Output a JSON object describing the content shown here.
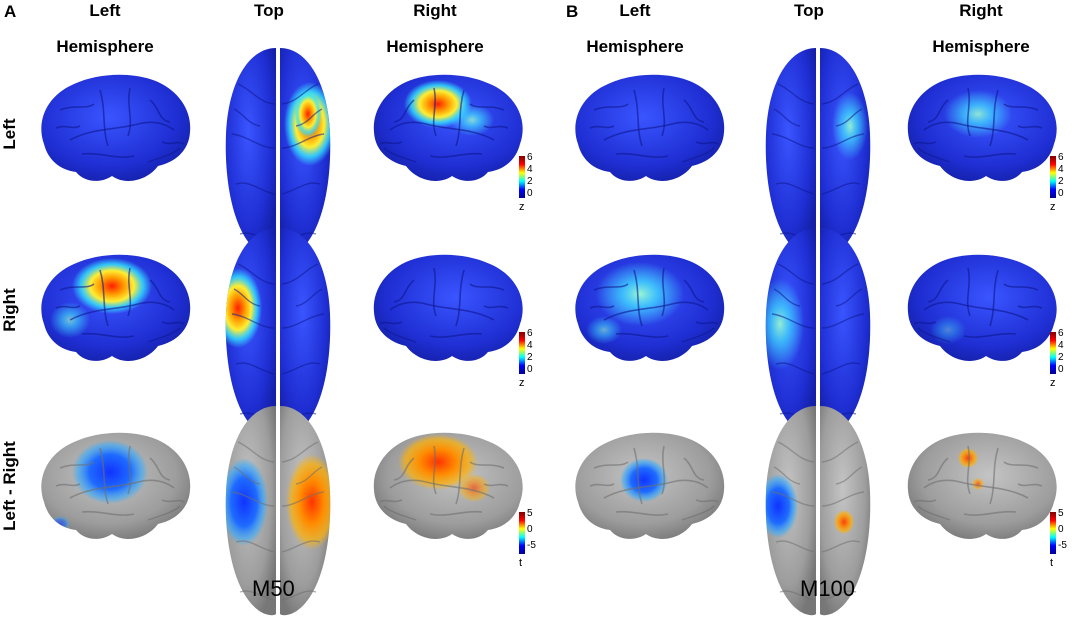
{
  "panels": [
    {
      "letter": "A",
      "condition": "M50",
      "columns": [
        {
          "line1": "Left",
          "line2": "Hemisphere"
        },
        {
          "line1": "Top",
          "line2": ""
        },
        {
          "line1": "Right",
          "line2": "Hemisphere"
        }
      ]
    },
    {
      "letter": "B",
      "condition": "M100",
      "columns": [
        {
          "line1": "Left",
          "line2": "Hemisphere"
        },
        {
          "line1": "Top",
          "line2": ""
        },
        {
          "line1": "Right",
          "line2": "Hemisphere"
        }
      ]
    }
  ],
  "rows": [
    {
      "label": "Left"
    },
    {
      "label": "Right"
    },
    {
      "label": "Left - Right"
    }
  ],
  "colorbars": {
    "z": {
      "ticks": [
        "6",
        "4",
        "2",
        "0"
      ],
      "unit": "z"
    },
    "t": {
      "ticks": [
        "5",
        "0",
        "-5"
      ],
      "unit": "t"
    }
  },
  "colors": {
    "brain_blue": "#1f2fd4",
    "brain_gray": "#9a9a9a",
    "hot": "#ff2a00",
    "warm": "#ffd000",
    "cool": "#24d6ff",
    "neg": "#1a55ff"
  }
}
